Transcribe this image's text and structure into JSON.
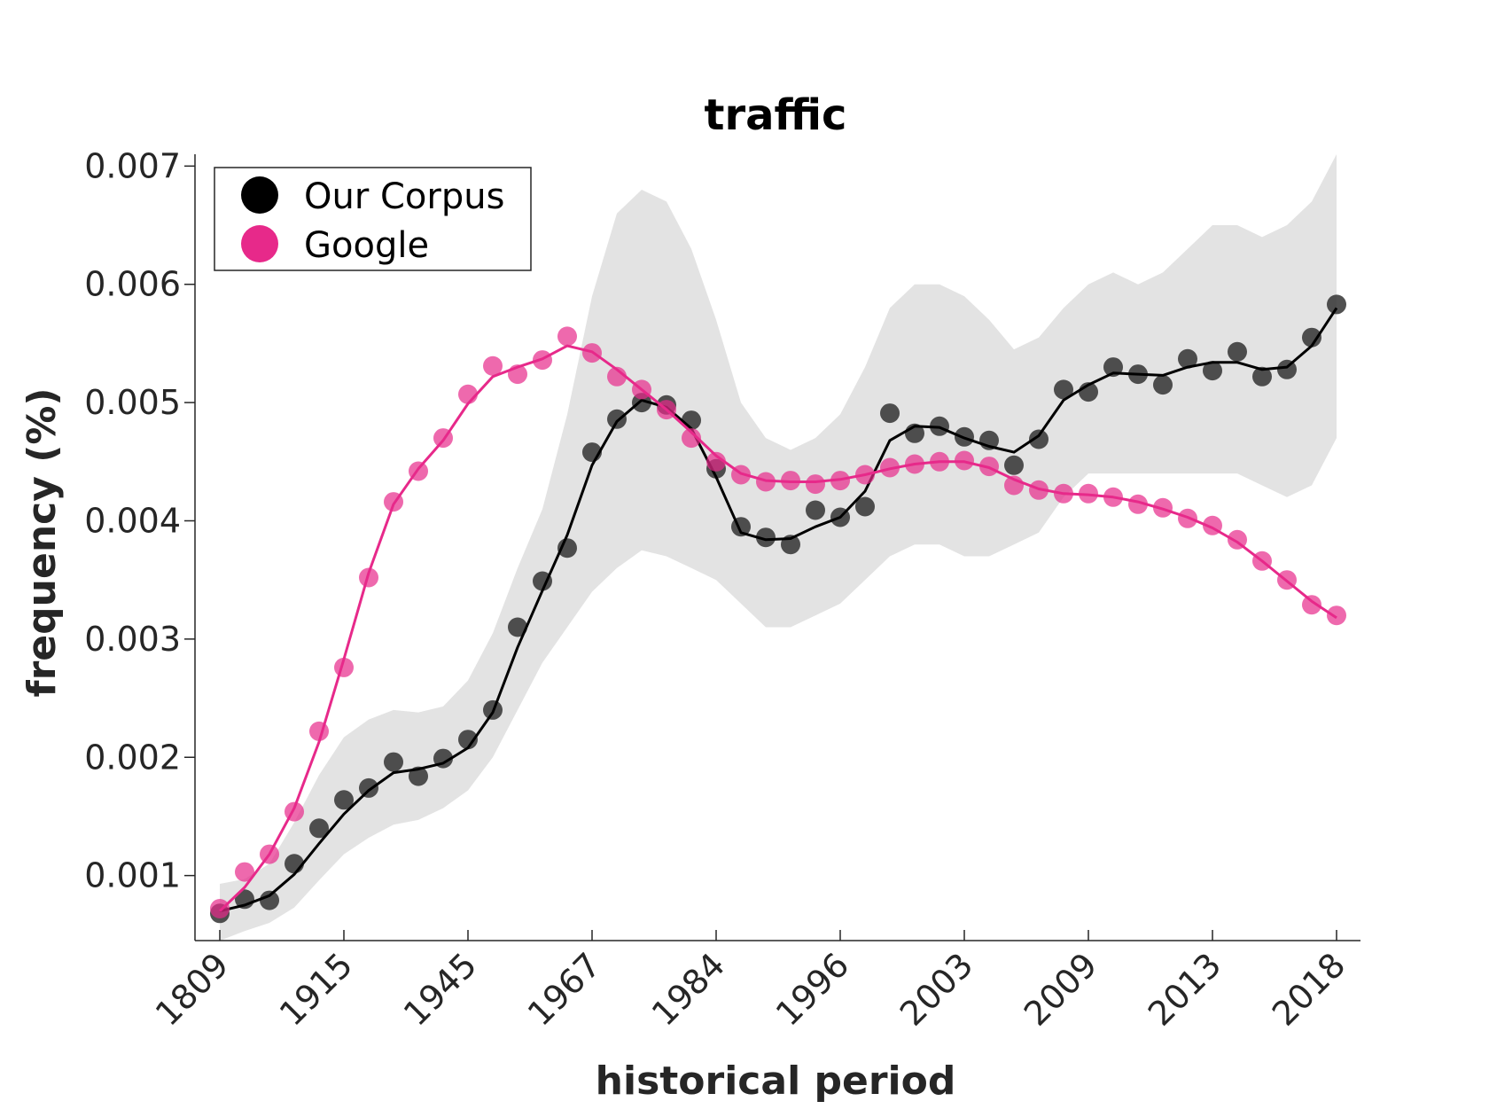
{
  "chart_data": {
    "type": "scatter",
    "title": "traffic",
    "xlabel": "historical period",
    "ylabel": "frequency (%)",
    "x_tick_labels": [
      "1809",
      "1915",
      "1945",
      "1967",
      "1984",
      "1996",
      "2003",
      "2009",
      "2013",
      "2018"
    ],
    "y_ticks": [
      0.001,
      0.002,
      0.003,
      0.004,
      0.005,
      0.006,
      0.007
    ],
    "y_tick_labels": [
      "0.001",
      "0.002",
      "0.003",
      "0.004",
      "0.005",
      "0.006",
      "0.007"
    ],
    "ylim": [
      0.00045,
      0.0071
    ],
    "legend": {
      "position": "top-left"
    },
    "grid": false,
    "colors": {
      "corpus": "#333333",
      "google": "#e7298a",
      "band": "#e3e3e3"
    },
    "series": [
      {
        "name": "Our Corpus",
        "color": "#333333",
        "points": [
          0.00068,
          0.0008,
          0.00079,
          0.0011,
          0.0014,
          0.00164,
          0.00174,
          0.00196,
          0.00184,
          0.00199,
          0.00215,
          0.0024,
          0.0031,
          0.00349,
          0.00377,
          0.00458,
          0.00486,
          0.005,
          0.00498,
          0.00485,
          0.00444,
          0.00395,
          0.00386,
          0.0038,
          0.00409,
          0.00403,
          0.00412,
          0.00491,
          0.00474,
          0.0048,
          0.00471,
          0.00468,
          0.00447,
          0.00469,
          0.00511,
          0.00509,
          0.0053,
          0.00524,
          0.00515,
          0.00537,
          0.00527,
          0.00543,
          0.00522,
          0.00528,
          0.00555,
          0.00583
        ],
        "trend": [
          0.0007,
          0.00075,
          0.00083,
          0.00101,
          0.00127,
          0.00152,
          0.00172,
          0.00187,
          0.0019,
          0.00195,
          0.00208,
          0.00238,
          0.00293,
          0.00341,
          0.00388,
          0.00447,
          0.00484,
          0.00502,
          0.00496,
          0.00478,
          0.00437,
          0.0039,
          0.00384,
          0.00385,
          0.00395,
          0.00403,
          0.00425,
          0.00468,
          0.0048,
          0.00479,
          0.0047,
          0.00463,
          0.00458,
          0.00472,
          0.00502,
          0.00515,
          0.00525,
          0.00524,
          0.00523,
          0.0053,
          0.00534,
          0.00534,
          0.00528,
          0.0053,
          0.00548,
          0.0058
        ]
      },
      {
        "name": "Google",
        "color": "#e7298a",
        "points": [
          0.00072,
          0.00103,
          0.00118,
          0.00154,
          0.00222,
          0.00276,
          0.00352,
          0.00416,
          0.00442,
          0.0047,
          0.00507,
          0.00531,
          0.00524,
          0.00536,
          0.00556,
          0.00542,
          0.00522,
          0.00511,
          0.00494,
          0.0047,
          0.0045,
          0.00439,
          0.00433,
          0.00434,
          0.00431,
          0.00434,
          0.00439,
          0.00445,
          0.00448,
          0.0045,
          0.00451,
          0.00446,
          0.0043,
          0.00426,
          0.00423,
          0.00423,
          0.0042,
          0.00414,
          0.00411,
          0.00402,
          0.00396,
          0.00384,
          0.00366,
          0.0035,
          0.00329,
          0.0032
        ],
        "trend": [
          0.0007,
          0.0009,
          0.00118,
          0.00157,
          0.00213,
          0.00283,
          0.00356,
          0.00414,
          0.00444,
          0.00468,
          0.00499,
          0.00522,
          0.0053,
          0.00537,
          0.00548,
          0.00543,
          0.00528,
          0.00511,
          0.00494,
          0.00475,
          0.00455,
          0.0044,
          0.00434,
          0.00433,
          0.00433,
          0.00435,
          0.00439,
          0.00444,
          0.00448,
          0.0045,
          0.0045,
          0.00445,
          0.00435,
          0.00427,
          0.00423,
          0.00422,
          0.0042,
          0.00416,
          0.0041,
          0.00403,
          0.00394,
          0.00382,
          0.00366,
          0.00349,
          0.00332,
          0.00318
        ]
      }
    ],
    "confidence_band": {
      "upper": [
        0.00093,
        0.00097,
        0.0011,
        0.00145,
        0.00185,
        0.00217,
        0.00232,
        0.0024,
        0.00238,
        0.00243,
        0.00265,
        0.00305,
        0.0036,
        0.0041,
        0.0049,
        0.0059,
        0.0066,
        0.0068,
        0.0067,
        0.0063,
        0.0057,
        0.005,
        0.0047,
        0.0046,
        0.0047,
        0.0049,
        0.0053,
        0.0058,
        0.006,
        0.006,
        0.0059,
        0.0057,
        0.00545,
        0.00555,
        0.0058,
        0.006,
        0.0061,
        0.006,
        0.0061,
        0.0063,
        0.0065,
        0.0065,
        0.0064,
        0.0065,
        0.0067,
        0.0071
      ],
      "lower": [
        0.00045,
        0.00053,
        0.0006,
        0.00073,
        0.00096,
        0.00118,
        0.00132,
        0.00143,
        0.00147,
        0.00157,
        0.00172,
        0.002,
        0.0024,
        0.0028,
        0.0031,
        0.0034,
        0.0036,
        0.00375,
        0.0037,
        0.0036,
        0.0035,
        0.0033,
        0.0031,
        0.0031,
        0.0032,
        0.0033,
        0.0035,
        0.0037,
        0.0038,
        0.0038,
        0.0037,
        0.0037,
        0.0038,
        0.0039,
        0.0042,
        0.0044,
        0.0044,
        0.0044,
        0.0044,
        0.0044,
        0.0044,
        0.0044,
        0.0043,
        0.0042,
        0.0043,
        0.0047
      ]
    }
  }
}
